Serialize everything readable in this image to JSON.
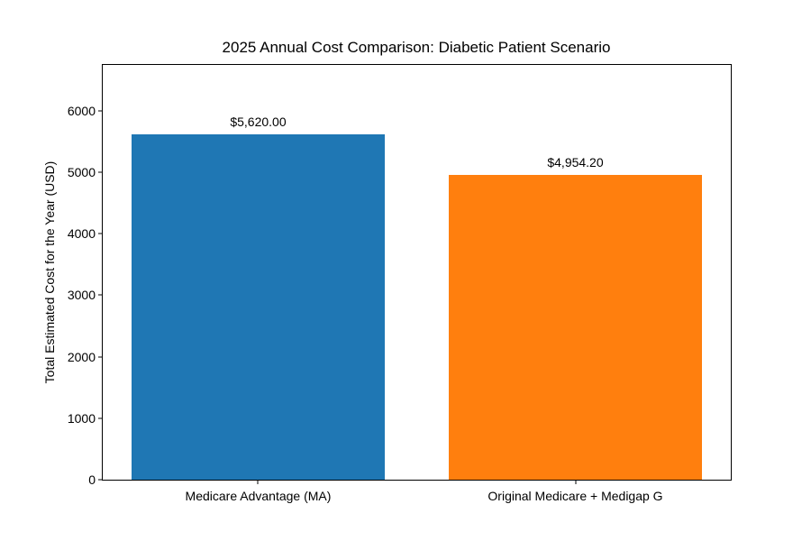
{
  "chart_data": {
    "type": "bar",
    "title": "2025 Annual Cost Comparison: Diabetic Patient Scenario",
    "xlabel": "",
    "ylabel": "Total Estimated Cost for the Year (USD)",
    "categories": [
      "Medicare Advantage (MA)",
      "Original Medicare + Medigap G"
    ],
    "values": [
      5620.0,
      4954.2
    ],
    "value_labels": [
      "$5,620.00",
      "$4,954.20"
    ],
    "bar_colors": [
      "#1f77b4",
      "#ff7f0e"
    ],
    "yticks": [
      0,
      1000,
      2000,
      3000,
      4000,
      5000,
      6000
    ],
    "ylim": [
      0,
      6744
    ],
    "grid": false,
    "legend_position": "none",
    "axis_color": "#000000",
    "text_color": "#000000",
    "background_color": "#ffffff"
  }
}
